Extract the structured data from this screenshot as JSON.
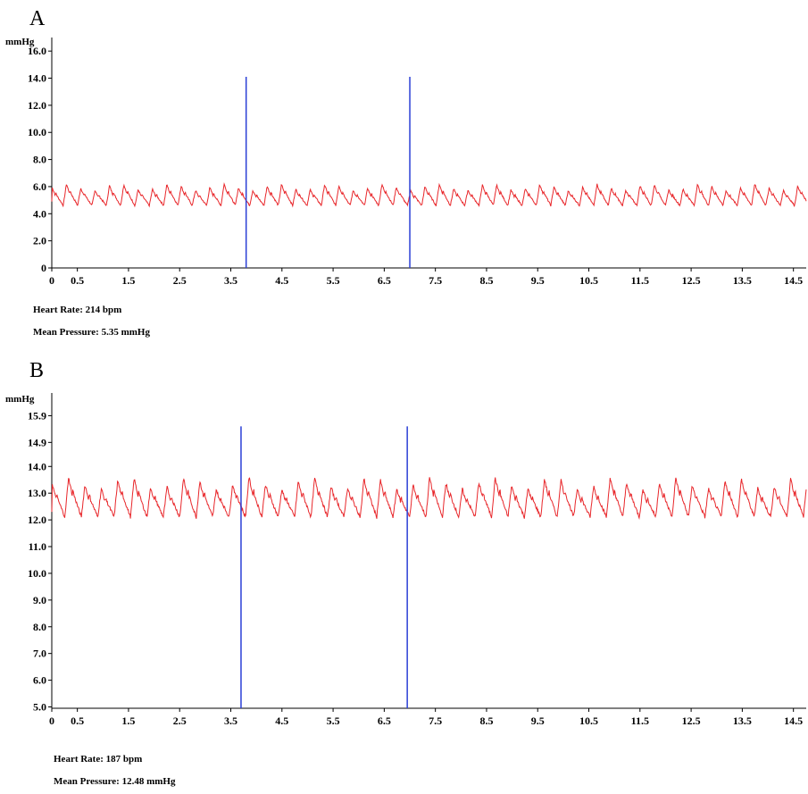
{
  "chart_data": [
    {
      "type": "line",
      "panel_label": "A",
      "y_unit": "mmHg",
      "ylim": [
        0,
        17
      ],
      "y_ticks": [
        "0",
        "2.0",
        "4.0",
        "6.0",
        "8.0",
        "10.0",
        "12.0",
        "14.0",
        "16.0"
      ],
      "y_tick_values": [
        0,
        2,
        4,
        6,
        8,
        10,
        12,
        14,
        16
      ],
      "xlim": [
        0,
        14.75
      ],
      "x_ticks": [
        "0",
        "0.5",
        "1.5",
        "2.5",
        "3.5",
        "4.5",
        "5.5",
        "6.5",
        "7.5",
        "8.5",
        "9.5",
        "10.5",
        "11.5",
        "12.5",
        "13.5",
        "14.5"
      ],
      "x_tick_values": [
        0,
        0.5,
        1.5,
        2.5,
        3.5,
        4.5,
        5.5,
        6.5,
        7.5,
        8.5,
        9.5,
        10.5,
        11.5,
        12.5,
        13.5,
        14.5
      ],
      "grid": false,
      "series": [
        {
          "color": "#e8262a",
          "waveform": {
            "beats_per_minute": 214,
            "mean": 5.35,
            "peak": 6.2,
            "trough": 4.6,
            "start": 4.9
          }
        }
      ],
      "markers": [
        {
          "x": 3.8,
          "y_range": [
            0,
            14.1
          ],
          "color": "#2b3fd6"
        },
        {
          "x": 7.0,
          "y_range": [
            0,
            14.1
          ],
          "color": "#2b3fd6"
        }
      ],
      "annotations": [
        "Heart Rate: 214 bpm",
        "Mean Pressure: 5.35 mmHg"
      ]
    },
    {
      "type": "line",
      "panel_label": "B",
      "y_unit": "mmHg",
      "ylim": [
        4.95,
        16.75
      ],
      "y_ticks": [
        "5.0",
        "6.0",
        "7.0",
        "8.0",
        "9.0",
        "10.0",
        "11.0",
        "12.0",
        "13.0",
        "14.0",
        "14.9",
        "15.9"
      ],
      "y_tick_values": [
        5.0,
        6.0,
        7.0,
        8.0,
        9.0,
        10.0,
        11.0,
        12.0,
        13.0,
        14.0,
        14.9,
        15.9
      ],
      "xlim": [
        0,
        14.75
      ],
      "x_ticks": [
        "0",
        "0.5",
        "1.5",
        "2.5",
        "3.5",
        "4.5",
        "5.5",
        "6.5",
        "7.5",
        "8.5",
        "9.5",
        "10.5",
        "11.5",
        "12.5",
        "13.5",
        "14.5"
      ],
      "x_tick_values": [
        0,
        0.5,
        1.5,
        2.5,
        3.5,
        4.5,
        5.5,
        6.5,
        7.5,
        8.5,
        9.5,
        10.5,
        11.5,
        12.5,
        13.5,
        14.5
      ],
      "grid": false,
      "series": [
        {
          "color": "#e8262a",
          "waveform": {
            "beats_per_minute": 187,
            "mean": 12.48,
            "peak": 13.6,
            "trough": 12.1,
            "start": 12.3
          }
        }
      ],
      "markers": [
        {
          "x": 3.7,
          "y_range": [
            4.95,
            15.5
          ],
          "color": "#2b3fd6"
        },
        {
          "x": 6.95,
          "y_range": [
            4.95,
            15.5
          ],
          "color": "#2b3fd6"
        }
      ],
      "annotations": [
        "Heart Rate: 187 bpm",
        "Mean Pressure: 12.48 mmHg"
      ]
    }
  ]
}
